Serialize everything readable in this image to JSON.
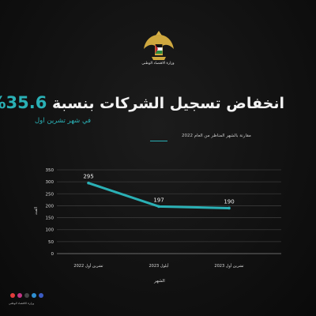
{
  "header": {
    "ministry_name": "وزارة الاقتصاد الوطني",
    "headline_text": "انخفاض تسجيل الشركات بنسبة",
    "headline_pct": "35.6%",
    "subhead": "في شهر تشرين اول",
    "note": "مقارنة بالشهر المناظر من العام 2022"
  },
  "colors": {
    "accent": "#2ab0b5",
    "background": "#111111",
    "text": "#f2f2f2"
  },
  "chart_data": {
    "type": "line",
    "categories": [
      "تشرين أول 2022",
      "أيلول 2023",
      "تشرين أول 2023"
    ],
    "series": [
      {
        "values": [
          295,
          197,
          190
        ]
      }
    ],
    "data_labels": [
      "295",
      "197",
      "190"
    ],
    "y_ticks": [
      "0",
      "50",
      "100",
      "150",
      "200",
      "250",
      "300",
      "350"
    ],
    "ylim": [
      0,
      350
    ],
    "xlabel": "الشهر",
    "ylabel": "العدد",
    "grid": true
  },
  "footer": {
    "icons": [
      "youtube-icon",
      "instagram-icon",
      "x-icon",
      "telegram-icon",
      "facebook-icon"
    ],
    "text": "وزارة الاقتصاد الوطني"
  }
}
